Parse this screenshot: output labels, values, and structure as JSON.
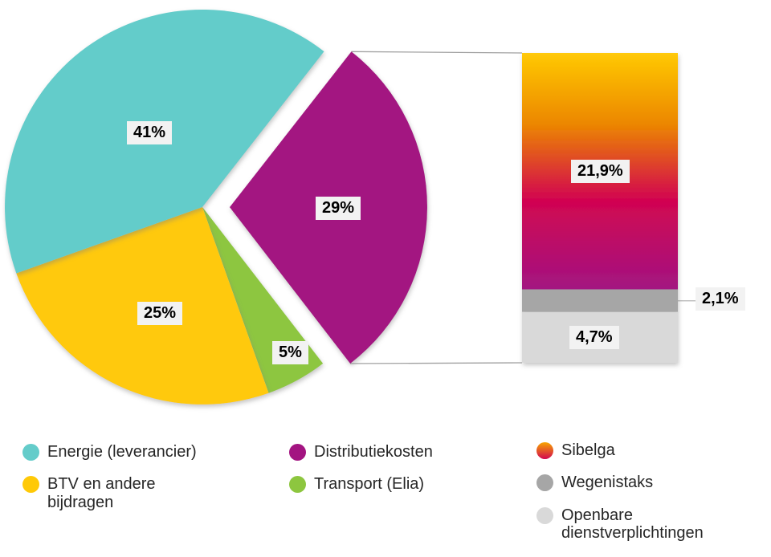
{
  "chart_data": {
    "type": "pie",
    "variant": "bar-of-pie",
    "unit": "%",
    "pie_slices_clockwise": [
      {
        "label": "Distributiekosten",
        "value": 29,
        "display": "29%",
        "color": "#A31481",
        "exploded": true
      },
      {
        "label": "Transport (Elia)",
        "value": 5,
        "display": "5%",
        "color": "#8DC63F",
        "exploded": false
      },
      {
        "label": "BTV en andere bijdragen",
        "value": 25,
        "display": "25%",
        "color": "#FFC907",
        "exploded": false
      },
      {
        "label": "Energie (leverancier)",
        "value": 41,
        "display": "41%",
        "color": "#64CCCA",
        "exploded": false
      }
    ],
    "bar_breakdown": {
      "parent_slice": "Distributiekosten",
      "segments_top_to_bottom": [
        {
          "label": "Sibelga",
          "value": 21.9,
          "display": "21,9%",
          "gradient": [
            "#FFC907",
            "#EC8700",
            "#D20550",
            "#A31481"
          ]
        },
        {
          "label": "Wegenistaks",
          "value": 2.1,
          "display": "2,1%",
          "color": "#A6A6A6"
        },
        {
          "label": "Openbare dienstverplichtingen",
          "value": 4.7,
          "display": "4,7%",
          "color": "#D9D9D9"
        }
      ]
    },
    "legend": {
      "position": "bottom",
      "columns": [
        {
          "items": [
            {
              "label": "Energie (leverancier)",
              "color": "#64CCCA"
            },
            {
              "label": "BTV en andere bijdragen",
              "color": "#FFC907"
            }
          ]
        },
        {
          "items": [
            {
              "label": "Distributiekosten",
              "color": "#A31481"
            },
            {
              "label": "Transport (Elia)",
              "color": "#8DC63F"
            }
          ]
        },
        {
          "items": [
            {
              "label": "Sibelga",
              "gradient": [
                "#F7A600",
                "#D20750"
              ]
            },
            {
              "label": "Wegenistaks",
              "color": "#A6A6A6"
            },
            {
              "label": "Openbare dienstverplichtingen",
              "color": "#D9D9D9"
            }
          ]
        }
      ]
    },
    "colors": {
      "label_background": "#F2F2F2",
      "label_text": "#000000",
      "connector_line": "#A0A0A0",
      "background": "#FFFFFF"
    }
  }
}
